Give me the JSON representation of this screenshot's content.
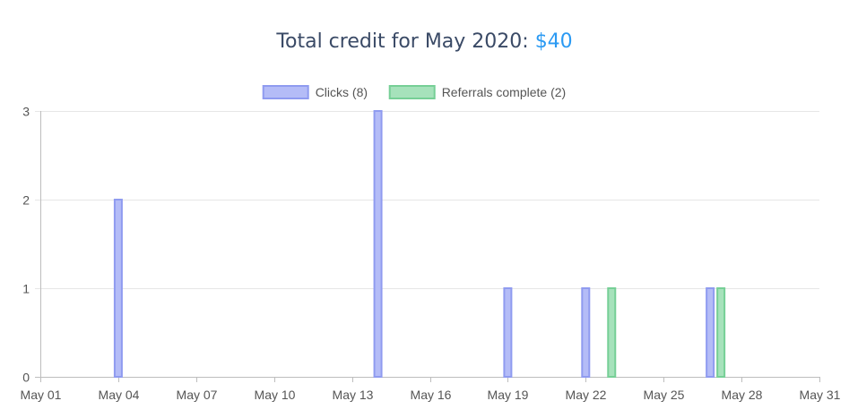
{
  "title": {
    "prefix": "Total credit for May 2020: ",
    "amount": "$40"
  },
  "colors": {
    "title_text": "#3a4a66",
    "amount": "#2b9af3",
    "clicks_fill": "#b4bcf7",
    "clicks_border": "#8f9bf0",
    "referrals_fill": "#a6e2bb",
    "referrals_border": "#76cf96",
    "grid": "#e6e6e6",
    "axis": "#bdbdbd"
  },
  "chart_data": {
    "type": "bar",
    "title": "Total credit for May 2020: $40",
    "xlabel": "",
    "ylabel": "",
    "ylim": [
      0,
      3
    ],
    "y_ticks": [
      "0",
      "1",
      "2",
      "3"
    ],
    "x_range": [
      "2020-05-01",
      "2020-05-31"
    ],
    "x_ticks": [
      "May 01",
      "May 04",
      "May 07",
      "May 10",
      "May 13",
      "May 16",
      "May 19",
      "May 22",
      "May 25",
      "May 28",
      "May 31"
    ],
    "grid": true,
    "legend_position": "top",
    "series": [
      {
        "name": "Clicks (8)",
        "color_key": "clicks",
        "points": [
          {
            "date": "2020-05-04",
            "value": 2
          },
          {
            "date": "2020-05-14",
            "value": 3
          },
          {
            "date": "2020-05-19",
            "value": 1
          },
          {
            "date": "2020-05-22",
            "value": 1
          },
          {
            "date": "2020-05-27",
            "value": 1
          }
        ]
      },
      {
        "name": "Referrals complete (2)",
        "color_key": "referrals",
        "points": [
          {
            "date": "2020-05-23",
            "value": 1
          },
          {
            "date": "2020-05-27",
            "value": 1
          }
        ]
      }
    ]
  }
}
